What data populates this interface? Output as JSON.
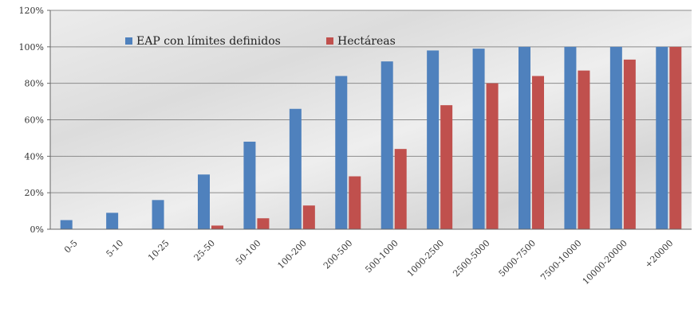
{
  "chart_data": {
    "type": "bar",
    "categories": [
      "0-5",
      "5-10",
      "10-25",
      "25-50",
      "50-100",
      "100-200",
      "200-500",
      "500-1000",
      "1000-2500",
      "2500-5000",
      "5000-7500",
      "7500-10000",
      "10000-20000",
      "+20000"
    ],
    "series": [
      {
        "name": "EAP con límites definidos",
        "color": "#4F81BD",
        "values": [
          5,
          9,
          16,
          30,
          48,
          66,
          84,
          92,
          98,
          99,
          100,
          100,
          100,
          100
        ]
      },
      {
        "name": "Hectáreas",
        "color": "#C0504D",
        "values": [
          0,
          0,
          0,
          2,
          6,
          13,
          29,
          44,
          68,
          80,
          84,
          87,
          93,
          100
        ]
      }
    ],
    "yticks": [
      "0%",
      "20%",
      "40%",
      "60%",
      "80%",
      "100%",
      "120%"
    ],
    "ylim": [
      0,
      120
    ],
    "grid": true,
    "legend": "top-left",
    "title": "",
    "xlabel": "",
    "ylabel": ""
  }
}
